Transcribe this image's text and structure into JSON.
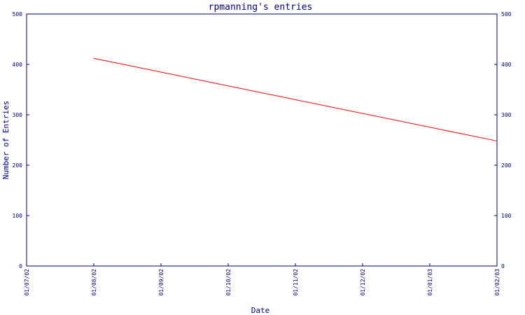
{
  "chart_data": {
    "type": "line",
    "title": "rpmanning's entries",
    "xlabel": "Date",
    "ylabel": "Number of Entries",
    "x": [
      "01/08/02",
      "01/02/03"
    ],
    "series": [
      {
        "values": [
          412,
          248
        ]
      }
    ],
    "x_ticks": [
      "01/07/02",
      "01/08/02",
      "01/09/02",
      "01/10/02",
      "01/11/02",
      "01/12/02",
      "01/01/03",
      "01/02/03"
    ],
    "y_ticks": [
      "0",
      "100",
      "200",
      "300",
      "400",
      "500"
    ],
    "ylim": [
      0,
      500
    ],
    "grid": false,
    "legend": "none",
    "colors": {
      "axis": "#000080",
      "text": "#000080",
      "series": "#ff0000",
      "background": "#ffffff"
    }
  }
}
